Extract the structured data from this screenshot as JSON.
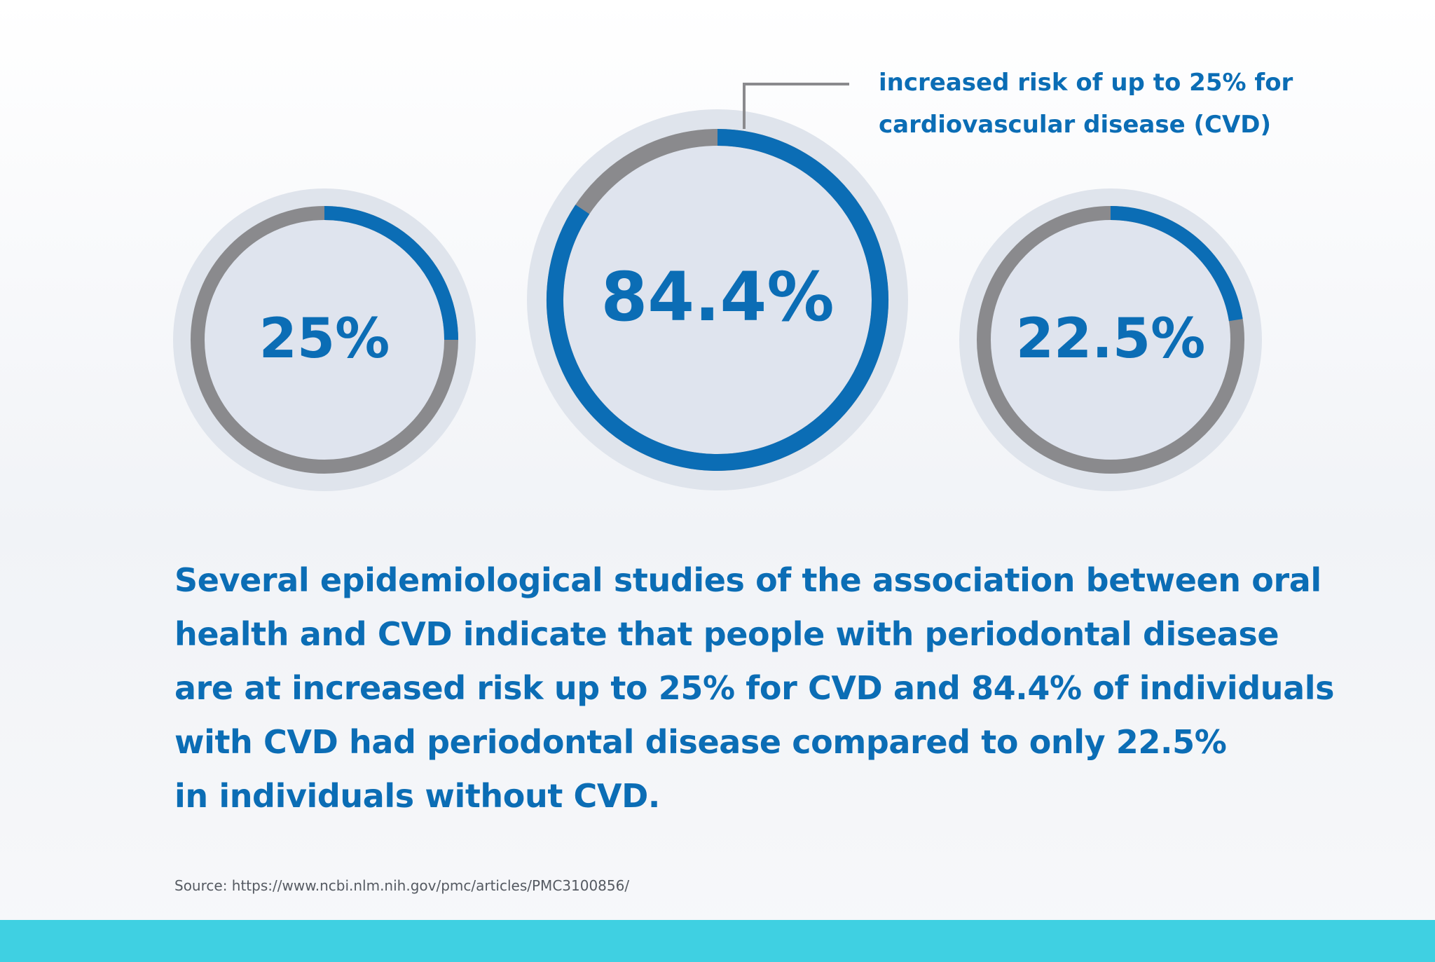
{
  "colors": {
    "accent": "#0b6db5",
    "gray": "#8a8a8d",
    "halo": "#dfe4ec",
    "inner": "#dfe4ee",
    "footer": "#3fd0e2"
  },
  "chart_data": {
    "type": "donut",
    "title": "",
    "rings": [
      {
        "label": "25%",
        "value": 25
      },
      {
        "label": "84.4%",
        "value": 84.4
      },
      {
        "label": "22.5%",
        "value": 22.5
      }
    ],
    "annotation": {
      "target": "84.4%",
      "lines": [
        "increased risk of up to 25% for",
        "cardiovascular disease (CVD)"
      ]
    }
  },
  "body": {
    "lines": [
      "Several epidemiological studies of the association between oral",
      "health and CVD indicate that people with periodontal disease",
      "are at increased risk up to 25% for CVD and 84.4% of individuals",
      "with CVD had periodontal disease compared to only 22.5%",
      "in individuals without CVD."
    ]
  },
  "source": "Source: https://www.ncbi.nlm.nih.gov/pmc/articles/PMC3100856/"
}
